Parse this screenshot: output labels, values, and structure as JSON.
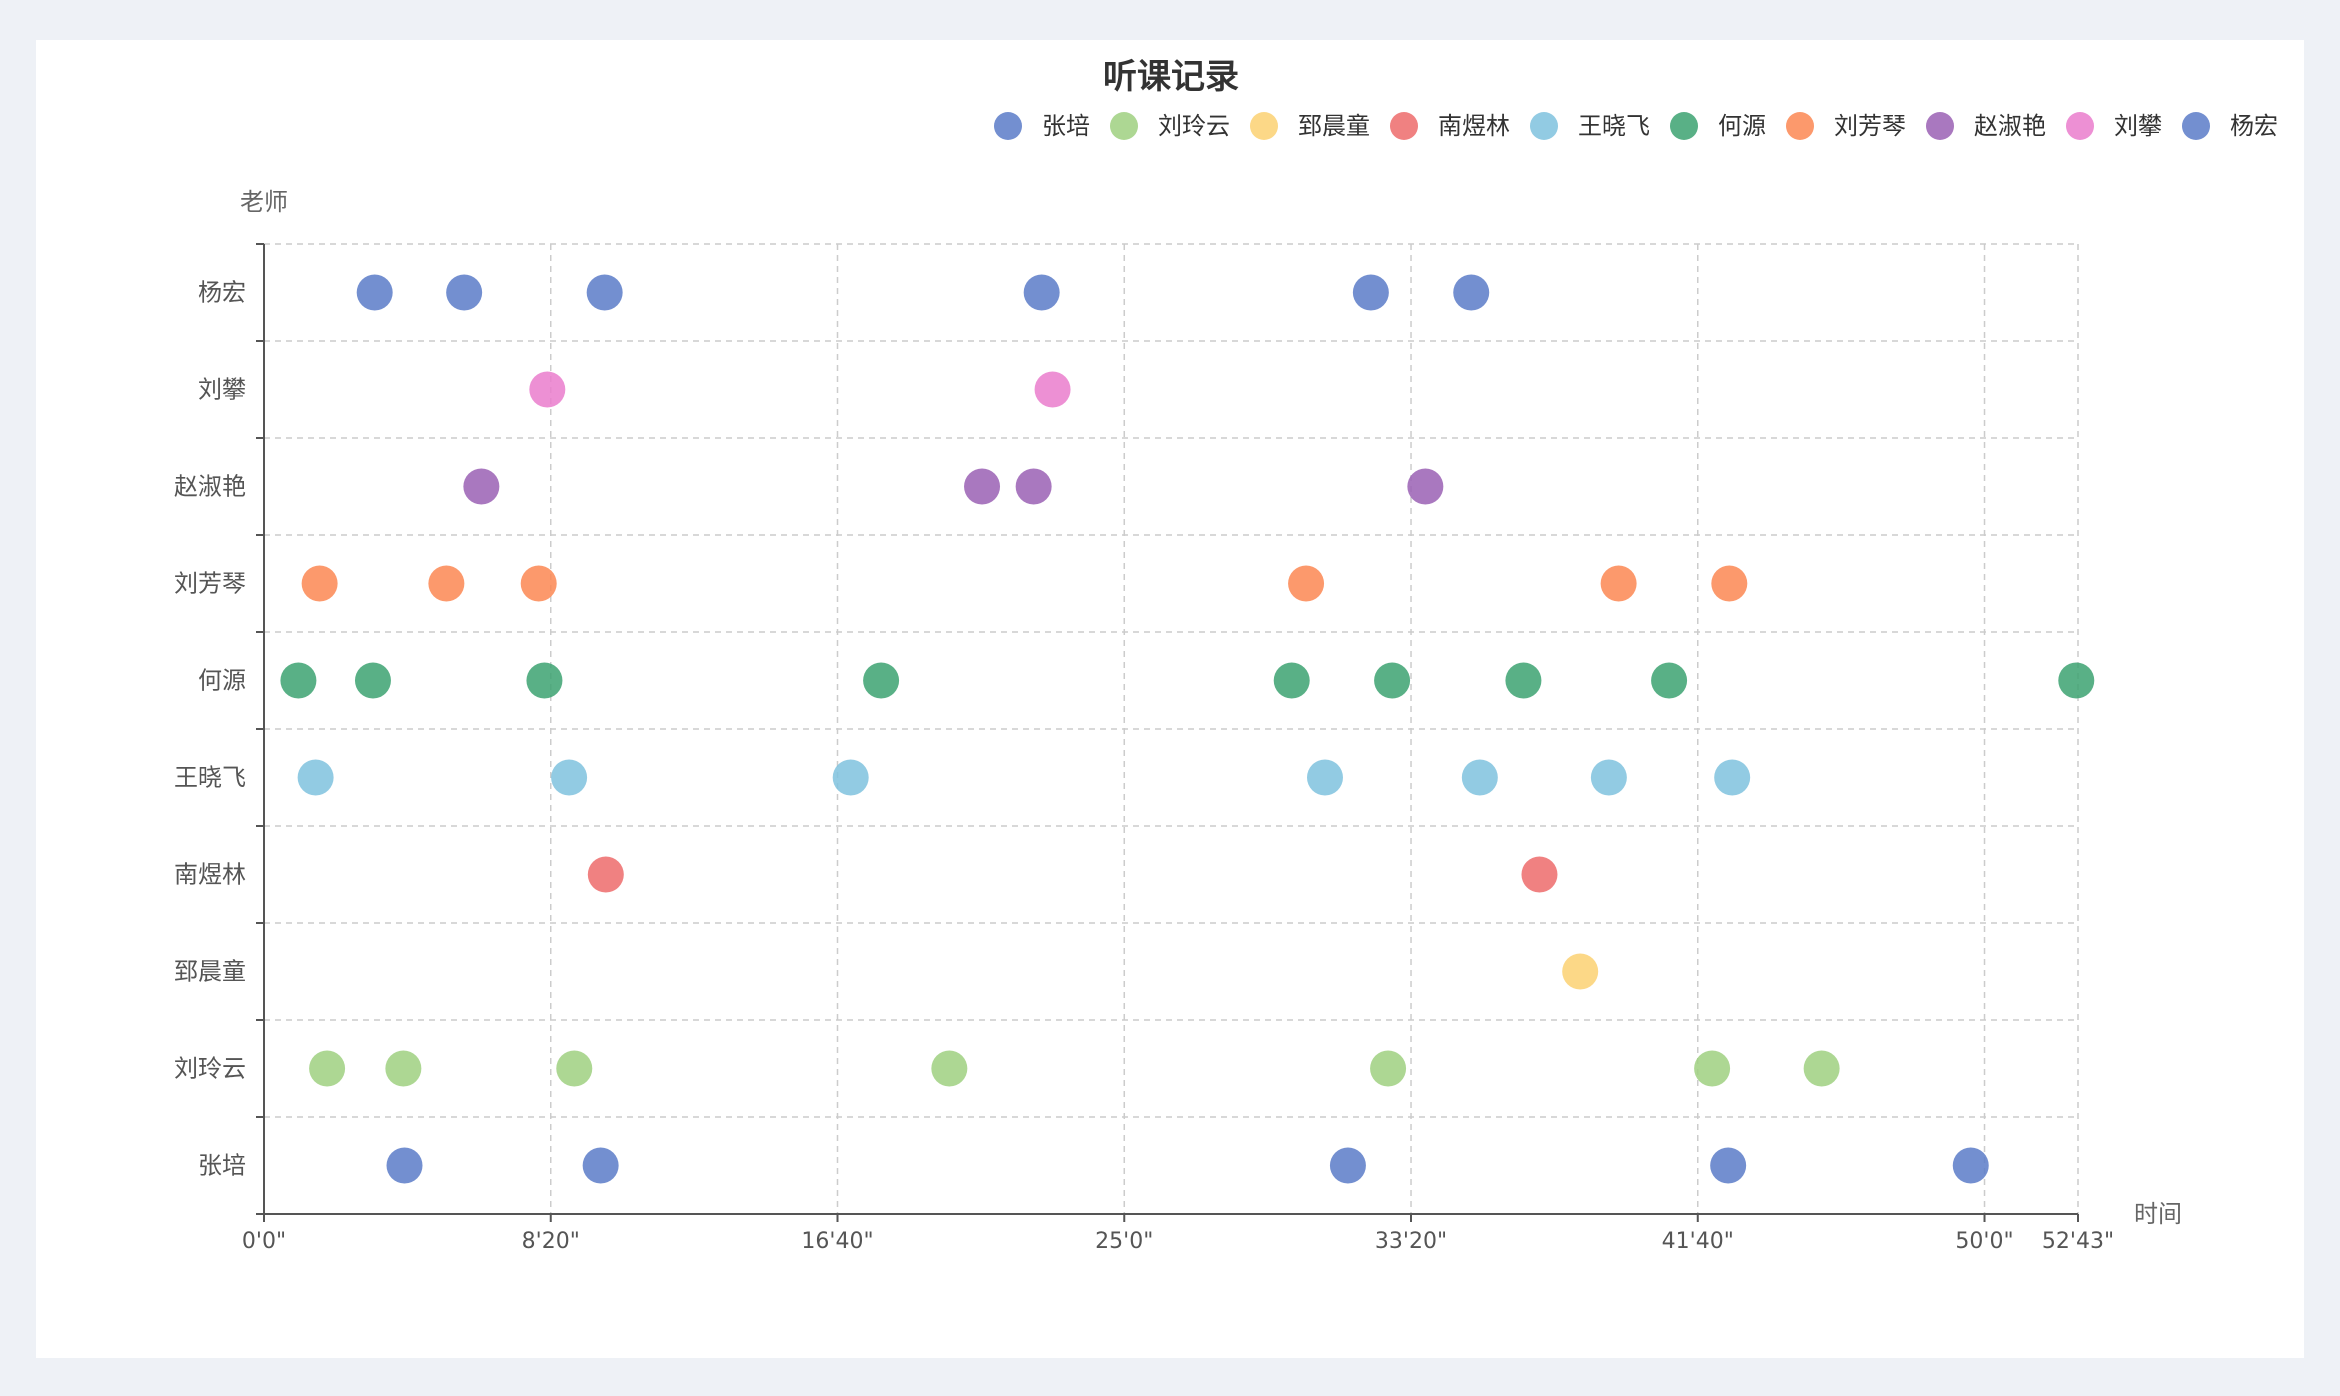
{
  "chart_data": {
    "type": "scatter",
    "title": "听课记录",
    "xlabel": "时间",
    "ylabel": "老师",
    "x_unit": "seconds",
    "xlim": [
      0,
      3163
    ],
    "x_ticks": [
      {
        "value": 0,
        "label": "0'0\""
      },
      {
        "value": 500,
        "label": "8'20\""
      },
      {
        "value": 1000,
        "label": "16'40\""
      },
      {
        "value": 1500,
        "label": "25'0\""
      },
      {
        "value": 2000,
        "label": "33'20\""
      },
      {
        "value": 2500,
        "label": "41'40\""
      },
      {
        "value": 3000,
        "label": "50'0\""
      },
      {
        "value": 3163,
        "label": "52'43\""
      }
    ],
    "categories": [
      "张培",
      "刘玲云",
      "郅晨童",
      "南煜林",
      "王晓飞",
      "何源",
      "刘芳琴",
      "赵淑艳",
      "刘攀",
      "杨宏"
    ],
    "grid": true,
    "legend_position": "top-right",
    "series": [
      {
        "name": "张培",
        "color": "#5b7bc8",
        "x": [
          245,
          587,
          1890,
          2553,
          2976
        ]
      },
      {
        "name": "刘玲云",
        "color": "#9fd080",
        "x": [
          110,
          243,
          541,
          1195,
          1960,
          2525,
          2716
        ]
      },
      {
        "name": "郅晨童",
        "color": "#fcd172",
        "x": [
          2295
        ]
      },
      {
        "name": "南煜林",
        "color": "#ed6b6b",
        "x": [
          596,
          2224
        ]
      },
      {
        "name": "王晓飞",
        "color": "#7fc2de",
        "x": [
          90,
          532,
          1023,
          1850,
          2120,
          2345,
          2560
        ]
      },
      {
        "name": "何源",
        "color": "#3ca271",
        "x": [
          60,
          190,
          489,
          1076,
          1792,
          1967,
          2196,
          2450,
          3160
        ]
      },
      {
        "name": "刘芳琴",
        "color": "#fc8752",
        "x": [
          97,
          318,
          479,
          1817,
          2362,
          2555
        ]
      },
      {
        "name": "赵淑艳",
        "color": "#9a60b4",
        "x": [
          379,
          1252,
          1342,
          2025
        ]
      },
      {
        "name": "刘攀",
        "color": "#ea7ccc",
        "x": [
          494,
          1375
        ]
      },
      {
        "name": "杨宏",
        "color": "#5b7bc8",
        "x": [
          193,
          349,
          594,
          1356,
          1930,
          2105
        ]
      }
    ]
  }
}
